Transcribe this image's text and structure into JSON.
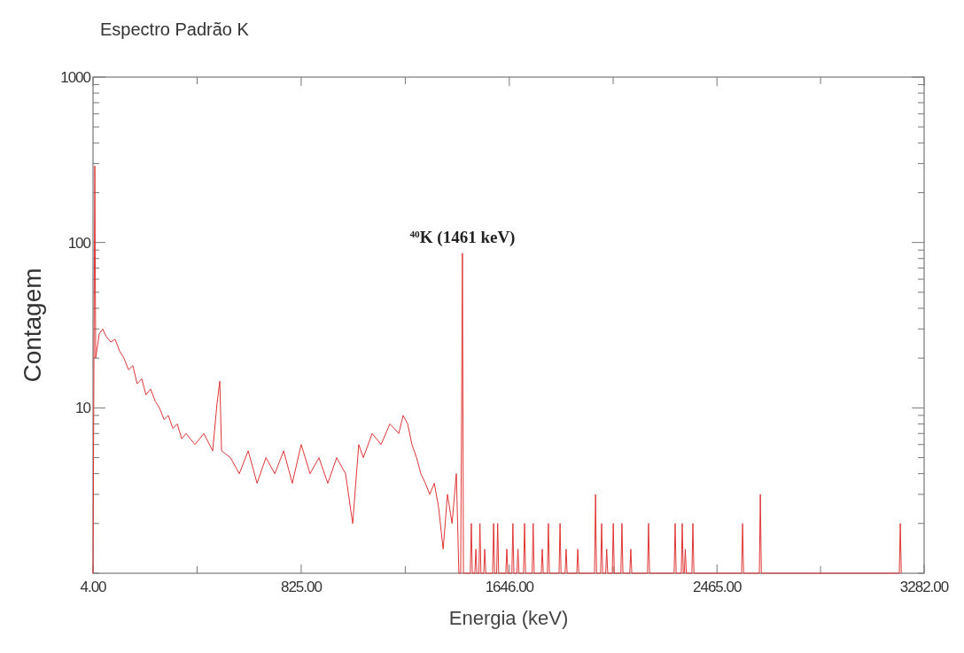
{
  "chart_data": {
    "type": "line",
    "title": "Espectro Padrão K",
    "xlabel": "Energia (keV)",
    "ylabel": "Contagem",
    "log": "y",
    "grid": false,
    "marker": "none",
    "line_style": "solid",
    "xlim": [
      4,
      3282
    ],
    "xticks": [
      {
        "value": 4,
        "label": "4.00"
      },
      {
        "value": 414.5,
        "label": null
      },
      {
        "value": 825,
        "label": "825.00"
      },
      {
        "value": 1235.5,
        "label": null
      },
      {
        "value": 1646,
        "label": "1646.00"
      },
      {
        "value": 2055.5,
        "label": null
      },
      {
        "value": 2465,
        "label": "2465.00"
      },
      {
        "value": 2873.5,
        "label": null
      },
      {
        "value": 3282,
        "label": "3282.00"
      }
    ],
    "ylim": [
      1,
      1000
    ],
    "yticks": [
      {
        "value": 1,
        "label": null
      },
      {
        "value": 2,
        "label": null
      },
      {
        "value": 3,
        "label": null
      },
      {
        "value": 4,
        "label": null
      },
      {
        "value": 5,
        "label": null
      },
      {
        "value": 6,
        "label": null
      },
      {
        "value": 7,
        "label": null
      },
      {
        "value": 8,
        "label": null
      },
      {
        "value": 9,
        "label": null
      },
      10,
      {
        "value": 20,
        "label": null
      },
      {
        "value": 30,
        "label": null
      },
      {
        "value": 40,
        "label": null
      },
      {
        "value": 50,
        "label": null
      },
      {
        "value": 60,
        "label": null
      },
      {
        "value": 70,
        "label": null
      },
      {
        "value": 80,
        "label": null
      },
      {
        "value": 90,
        "label": null
      },
      100,
      {
        "value": 200,
        "label": null
      },
      {
        "value": 300,
        "label": null
      },
      {
        "value": 400,
        "label": null
      },
      {
        "value": 500,
        "label": null
      },
      {
        "value": 600,
        "label": null
      },
      {
        "value": 700,
        "label": null
      },
      {
        "value": 800,
        "label": null
      },
      {
        "value": 900,
        "label": null
      },
      1000
    ],
    "annotations": [
      {
        "text": "$^{40}$K (1461 keV)",
        "x": 1461,
        "y": 86
      }
    ],
    "series": [
      {
        "color": "#e03535",
        "x": [
          4,
          11,
          14.5,
          28.5,
          42,
          56,
          74,
          91,
          109,
          126,
          144,
          161,
          178,
          196,
          213,
          231,
          249,
          266,
          284,
          301,
          319,
          336,
          354,
          371,
          406,
          441,
          476,
          493,
          504,
          511,
          546,
          581,
          616,
          651,
          686,
          721,
          756,
          790,
          825,
          860,
          895,
          930,
          965,
          1000,
          1028,
          1052,
          1070,
          1105,
          1140,
          1175,
          1210,
          1227,
          1245,
          1262,
          1280,
          1297,
          1315,
          1332,
          1350,
          1367,
          1385,
          1402,
          1420,
          1437,
          1447,
          1454,
          1461,
          1465,
          1492,
          1496,
          1500,
          1510,
          1514,
          1518,
          1526,
          1530,
          1534,
          1545,
          1549,
          1553,
          1580,
          1584,
          1588,
          1596,
          1600,
          1604,
          1632,
          1636,
          1640,
          1656,
          1660,
          1664,
          1676,
          1680,
          1684,
          1702,
          1706,
          1710,
          1736,
          1740,
          1744,
          1772,
          1776,
          1780,
          1796,
          1800,
          1804,
          1842,
          1846,
          1850,
          1866,
          1870,
          1874,
          1912,
          1916,
          1920,
          1982,
          1986,
          1990,
          2006,
          2010,
          2014,
          2026,
          2030,
          2034,
          2052,
          2056,
          2060,
          2086,
          2090,
          2094,
          2121,
          2125,
          2129,
          2191,
          2195,
          2199,
          2296,
          2300,
          2304,
          2324,
          2328,
          2332,
          2336,
          2340,
          2344,
          2366,
          2370,
          2374,
          2562,
          2566,
          2570,
          2632,
          2636,
          2640,
          3184,
          3188,
          3192
        ],
        "values": [
          1,
          290,
          20,
          28,
          30,
          27,
          25,
          26,
          22,
          20,
          17,
          18,
          14,
          15,
          12,
          13,
          11,
          10,
          8.5,
          9,
          7.5,
          8,
          6.5,
          7,
          6,
          7,
          5.5,
          10.6,
          14.5,
          5.5,
          5,
          4,
          5.5,
          3.5,
          5,
          4,
          5.5,
          3.5,
          6,
          4,
          5,
          3.5,
          5,
          4,
          2,
          6,
          5,
          7,
          6,
          8,
          7,
          9,
          8,
          6,
          5,
          4,
          3.5,
          3,
          3.5,
          2.5,
          1.4,
          3,
          2,
          4,
          1,
          1,
          86,
          1,
          1,
          2,
          1,
          1,
          1.4,
          1,
          1,
          2,
          1,
          1,
          1.4,
          1,
          1,
          2,
          1,
          1,
          2,
          1,
          1,
          1.4,
          1,
          1,
          2,
          1,
          1,
          1.4,
          1,
          1,
          2,
          1,
          1,
          2,
          1,
          1,
          1.4,
          1,
          1,
          2,
          1,
          1,
          2,
          1,
          1,
          1.4,
          1,
          1,
          1.4,
          1,
          1,
          3,
          1,
          1,
          2,
          1,
          1,
          1.4,
          1,
          1,
          2,
          1,
          1,
          2,
          1,
          1,
          1.4,
          1,
          1,
          2,
          1,
          1,
          2,
          1,
          1,
          2,
          1,
          1,
          1.4,
          1,
          1,
          2,
          1,
          1,
          2,
          1,
          1,
          3,
          1,
          1,
          2,
          1
        ]
      }
    ]
  }
}
